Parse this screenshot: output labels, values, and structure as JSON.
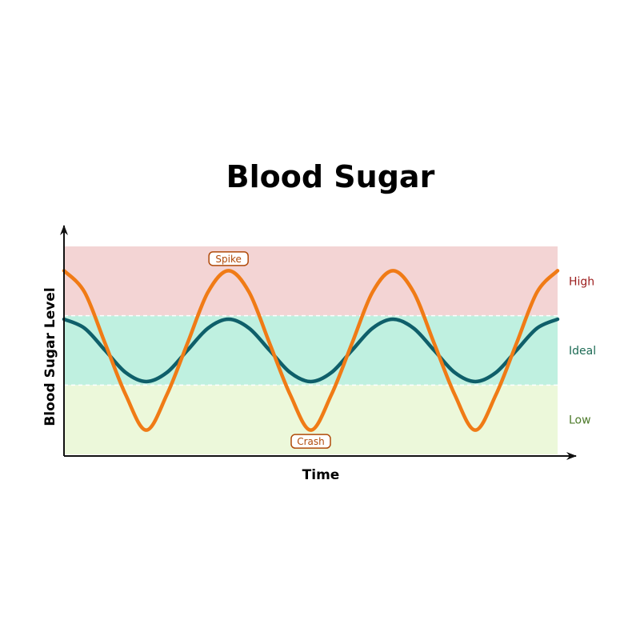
{
  "chart_data": {
    "type": "line",
    "title": "Blood Sugar",
    "xlabel": "Time",
    "ylabel": "Blood Sugar Level",
    "xlim": [
      0,
      6
    ],
    "ylim": [
      0,
      3
    ],
    "grid": false,
    "zones": [
      {
        "label": "High",
        "from": 2,
        "to": 3,
        "color": "#f3d4d4",
        "label_color": "#9b1c1c"
      },
      {
        "label": "Ideal",
        "from": 1,
        "to": 2,
        "color": "#bff0e0",
        "label_color": "#1d6b55"
      },
      {
        "label": "Low",
        "from": 0,
        "to": 1,
        "color": "#ecf8da",
        "label_color": "#4d7a2a"
      }
    ],
    "series": [
      {
        "color": "#f07b16",
        "x": [
          0,
          0.25,
          0.5,
          0.75,
          1,
          1.25,
          1.5,
          1.75,
          2,
          2.25,
          2.5,
          2.75,
          3,
          3.25,
          3.5,
          3.75,
          4,
          4.25,
          4.5,
          4.75,
          5,
          5.25,
          5.5,
          5.75,
          6
        ],
        "y": [
          2.65,
          2.34,
          1.6,
          0.86,
          0.35,
          0.86,
          1.6,
          2.34,
          2.65,
          2.34,
          1.6,
          0.86,
          0.35,
          0.86,
          1.6,
          2.34,
          2.65,
          2.34,
          1.6,
          0.86,
          0.35,
          0.86,
          1.6,
          2.34,
          2.65
        ]
      },
      {
        "color": "#0f5f6a",
        "x": [
          0,
          0.25,
          0.5,
          0.75,
          1,
          1.25,
          1.5,
          1.75,
          2,
          2.25,
          2.5,
          2.75,
          3,
          3.25,
          3.5,
          3.75,
          4,
          4.25,
          4.5,
          4.75,
          5,
          5.25,
          5.5,
          5.75,
          6
        ],
        "y": [
          1.95,
          1.82,
          1.5,
          1.18,
          1.05,
          1.18,
          1.5,
          1.82,
          1.95,
          1.82,
          1.5,
          1.18,
          1.05,
          1.18,
          1.5,
          1.82,
          1.95,
          1.82,
          1.5,
          1.18,
          1.05,
          1.18,
          1.5,
          1.82,
          1.95
        ]
      }
    ],
    "annotations": [
      {
        "text": "Spike",
        "x": 2,
        "y": 2.65,
        "position": "above"
      },
      {
        "text": "Crash",
        "x": 3,
        "y": 0.35,
        "position": "below"
      }
    ]
  }
}
